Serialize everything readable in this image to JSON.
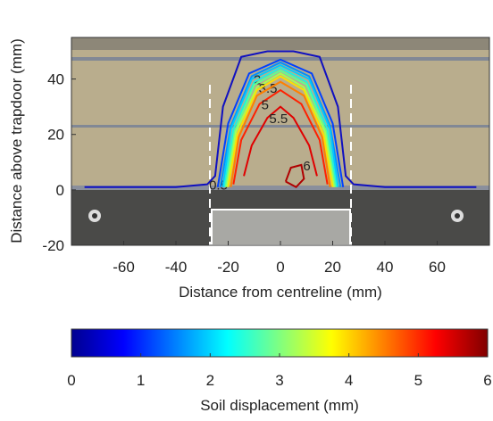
{
  "chart_data": {
    "type": "contour",
    "xlabel": "Distance from centreline (mm)",
    "ylabel": "Distance above trapdoor (mm)",
    "xlim": [
      -80,
      80
    ],
    "xticks": [
      -60,
      -40,
      -20,
      0,
      20,
      40,
      60
    ],
    "ylim": [
      -20,
      55
    ],
    "yticks": [
      -20,
      0,
      20,
      40
    ],
    "series": [
      {
        "level": 0.5,
        "color": "#1010c0",
        "x": [
          -75,
          -40,
          -28,
          -25,
          -22,
          -15,
          -5,
          0,
          5,
          15,
          22,
          25,
          28,
          40,
          75
        ],
        "y": [
          1,
          1,
          2,
          5,
          30,
          48,
          50,
          50,
          50,
          48,
          30,
          5,
          2,
          1,
          1
        ]
      },
      {
        "level": 1,
        "color": "#0040ff",
        "x": [
          -24,
          -20,
          -12,
          0,
          12,
          20,
          24
        ],
        "y": [
          1,
          24,
          42,
          47,
          42,
          24,
          1
        ]
      },
      {
        "level": 1.5,
        "color": "#0090ff",
        "x": [
          -23,
          -19,
          -11,
          0,
          11,
          19,
          23
        ],
        "y": [
          1,
          23,
          41,
          46,
          41,
          23,
          1
        ]
      },
      {
        "level": 2,
        "color": "#00c8ff",
        "x": [
          -22,
          -19,
          -11,
          0,
          11,
          19,
          22
        ],
        "y": [
          1,
          22,
          40,
          45,
          40,
          22,
          1
        ]
      },
      {
        "level": 2.5,
        "color": "#20f0e0",
        "x": [
          -21.5,
          -18,
          -10,
          0,
          10,
          18,
          21.5
        ],
        "y": [
          1,
          22,
          39,
          44,
          39,
          22,
          1
        ]
      },
      {
        "level": 3,
        "color": "#60ff90",
        "x": [
          -21,
          -17.5,
          -10,
          0,
          10,
          17.5,
          21
        ],
        "y": [
          1,
          21,
          38,
          43,
          38,
          21,
          1
        ]
      },
      {
        "level": 3.5,
        "color": "#a8ff50",
        "x": [
          -20.5,
          -17,
          -9,
          0,
          9,
          17,
          20.5
        ],
        "y": [
          1,
          21,
          37,
          42,
          37,
          21,
          1
        ]
      },
      {
        "level": 4,
        "color": "#ffe000",
        "x": [
          -20,
          -16.5,
          -9,
          0,
          9,
          16.5,
          20
        ],
        "y": [
          1,
          20,
          36,
          41,
          36,
          20,
          1
        ]
      },
      {
        "level": 4.5,
        "color": "#ff8000",
        "x": [
          -19,
          -16,
          -9,
          0,
          9,
          16,
          19
        ],
        "y": [
          1,
          19,
          34,
          39,
          34,
          19,
          1
        ]
      },
      {
        "level": 5,
        "color": "#ff2000",
        "x": [
          -18,
          -15,
          -8,
          0,
          8,
          15,
          18
        ],
        "y": [
          2,
          18,
          31,
          36,
          31,
          18,
          2
        ]
      },
      {
        "level": 5.5,
        "color": "#e00000",
        "x": [
          -14,
          -11,
          -5,
          0,
          5,
          11,
          14
        ],
        "y": [
          5,
          16,
          26,
          30,
          26,
          16,
          5
        ]
      },
      {
        "level": 6,
        "color": "#b00000",
        "x": [
          2,
          4,
          8,
          9,
          6,
          2
        ],
        "y": [
          3,
          8,
          9,
          4,
          1,
          3
        ]
      }
    ],
    "colorbar": {
      "label": "Soil displacement (mm)",
      "clim": [
        0,
        6
      ],
      "ticks": [
        0,
        1,
        2,
        3,
        4,
        5,
        6
      ],
      "colors": [
        "#00008f",
        "#0000ff",
        "#0080ff",
        "#00ffff",
        "#80ff80",
        "#ffff00",
        "#ff8000",
        "#ff0000",
        "#800000"
      ]
    }
  }
}
